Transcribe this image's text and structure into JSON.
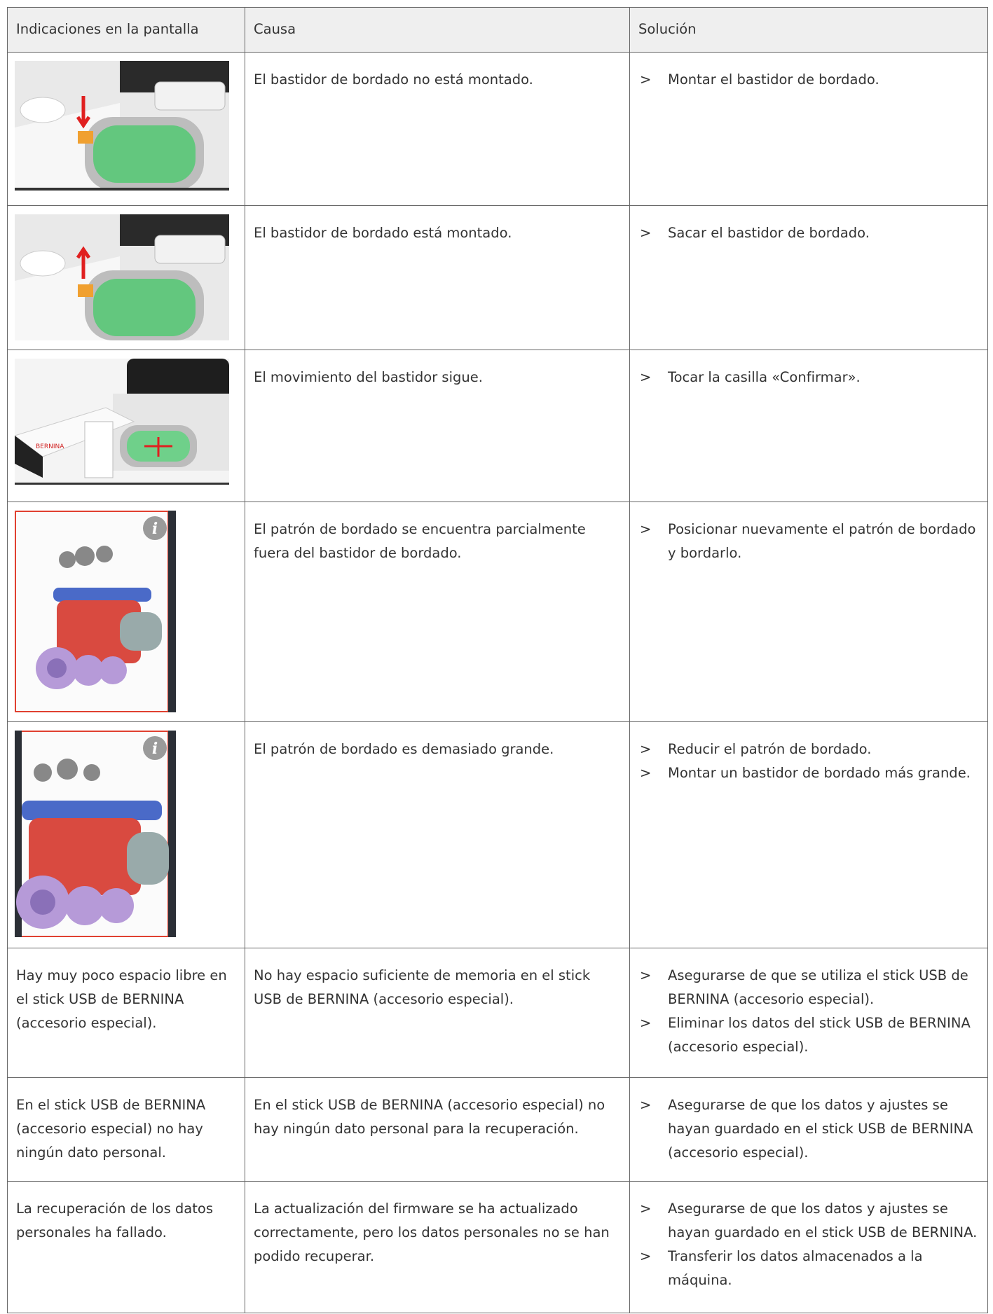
{
  "table": {
    "header": [
      "Indicaciones en la pantalla",
      "Causa",
      "Solución"
    ],
    "rows": [
      {
        "cause": "El bastidor de bordado no está montado.",
        "solutions": [
          "Montar el bastidor de bordado."
        ]
      },
      {
        "cause": "El bastidor de bordado está montado.",
        "solutions": [
          "Sacar el bastidor de bordado."
        ]
      },
      {
        "cause": "El movimiento del bastidor sigue.",
        "solutions": [
          "Tocar la casilla «Confirmar»."
        ]
      },
      {
        "cause": "El patrón de bordado se encuentra parcialmente fuera del bastidor de bordado.",
        "solutions": [
          "Posicionar nuevamente el patrón de bordado y bordarlo."
        ]
      },
      {
        "cause": "El patrón de bordado es demasiado grande.",
        "solutions": [
          "Reducir el patrón de bordado.",
          "Montar un bastidor de bordado más grande."
        ]
      },
      {
        "indication": "Hay muy poco espacio libre en el stick USB de BERNINA (accesorio especial).",
        "cause": "No hay espacio suficiente de memoria en el stick USB de BERNINA (accesorio especial).",
        "solutions": [
          "Asegurarse de que se utiliza el stick USB de BERNINA (accesorio especial).",
          "Eliminar los datos del stick USB de BERNINA (accesorio especial)."
        ]
      },
      {
        "indication": "En el stick USB de BERNINA (accesorio especial) no hay ningún dato personal.",
        "cause": "En el stick USB de BERNINA (accesorio especial) no hay ningún dato personal para la recuperación.",
        "solutions": [
          "Asegurarse de que los datos y ajustes se hayan guardado en el stick USB de BERNINA (accesorio especial)."
        ]
      },
      {
        "indication": "La recuperación de los datos personales ha fallado.",
        "cause": "La actualización del firmware se ha actualizado correctamente, pero los datos personales no se han podido recuperar.",
        "solutions": [
          "Asegurarse de que los datos y ajustes se hayan guardado en el stick USB de BERNINA.",
          "Transferir los datos almacenados a la máquina."
        ]
      }
    ]
  }
}
